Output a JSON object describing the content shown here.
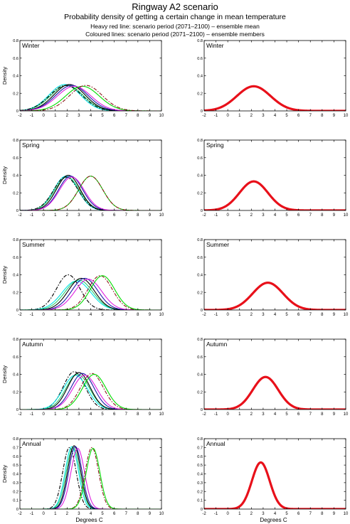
{
  "title": "Ringway A2 scenario",
  "subtitle": "Probability density of getting a certain change in mean temperature",
  "legend_heavy": "Heavy red line: scenario period (2071–2100) – ensemble mean",
  "legend_coloured": "Coloured lines: scenario period (2071–2100) – ensemble members",
  "colors": {
    "ensemble_mean": "#e8101a",
    "axis": "#000000"
  },
  "chart_data": [
    {
      "type": "line",
      "panel": "Winter",
      "column": "ensemble members",
      "title": "Winter",
      "xlabel": "",
      "ylabel": "Density",
      "xlim": [
        -2,
        10
      ],
      "ylim": [
        0,
        0.8
      ],
      "xticks": [
        "-2",
        "-1",
        "0",
        "1",
        "2",
        "3",
        "4",
        "5",
        "6",
        "7",
        "8",
        "9",
        "10"
      ],
      "yticks": [
        "0",
        "0.2",
        "0.4",
        "0.6",
        "0.8"
      ],
      "series": [
        {
          "color": "#00e5e5",
          "style": "solid",
          "peak_x": 1.8,
          "peak_y": 0.3
        },
        {
          "color": "#2ecc71",
          "style": "solid",
          "peak_x": 2.0,
          "peak_y": 0.29
        },
        {
          "color": "#000000",
          "style": "solid",
          "peak_x": 2.2,
          "peak_y": 0.3
        },
        {
          "color": "#000000",
          "style": "dashdot",
          "peak_x": 1.9,
          "peak_y": 0.29
        },
        {
          "color": "#1a1aaa",
          "style": "solid",
          "peak_x": 2.4,
          "peak_y": 0.29
        },
        {
          "color": "#e020e0",
          "style": "solid",
          "peak_x": 2.6,
          "peak_y": 0.28
        },
        {
          "color": "#00dd00",
          "style": "solid",
          "peak_x": 3.3,
          "peak_y": 0.28
        },
        {
          "color": "#8b1a1a",
          "style": "dashdot",
          "peak_x": 3.6,
          "peak_y": 0.29
        }
      ]
    },
    {
      "type": "line",
      "panel": "Winter",
      "column": "ensemble mean",
      "title": "Winter",
      "xlabel": "",
      "ylabel": "",
      "xlim": [
        -2,
        10
      ],
      "ylim": [
        0,
        0.8
      ],
      "xticks": [
        "-2",
        "-1",
        "0",
        "1",
        "2",
        "3",
        "4",
        "5",
        "6",
        "7",
        "8",
        "9",
        "10"
      ],
      "yticks": [
        "0",
        "0.2",
        "0.4",
        "0.6",
        "0.8"
      ],
      "series": [
        {
          "color": "#e8101a",
          "style": "heavy",
          "peak_x": 2.2,
          "peak_y": 0.28
        }
      ]
    },
    {
      "type": "line",
      "panel": "Spring",
      "column": "ensemble members",
      "title": "Spring",
      "xlabel": "",
      "ylabel": "Density",
      "xlim": [
        -2,
        10
      ],
      "ylim": [
        0,
        0.8
      ],
      "xticks": [
        "-2",
        "-1",
        "0",
        "1",
        "2",
        "3",
        "4",
        "5",
        "6",
        "7",
        "8",
        "9",
        "10"
      ],
      "yticks": [
        "0",
        "0.2",
        "0.4",
        "0.6",
        "0.8"
      ],
      "series": [
        {
          "color": "#00e5e5",
          "style": "solid",
          "peak_x": 1.9,
          "peak_y": 0.39
        },
        {
          "color": "#2ecc71",
          "style": "solid",
          "peak_x": 2.0,
          "peak_y": 0.38
        },
        {
          "color": "#000000",
          "style": "solid",
          "peak_x": 2.1,
          "peak_y": 0.4
        },
        {
          "color": "#000000",
          "style": "dashdot",
          "peak_x": 1.9,
          "peak_y": 0.38
        },
        {
          "color": "#1a1aaa",
          "style": "solid",
          "peak_x": 2.3,
          "peak_y": 0.39
        },
        {
          "color": "#e020e0",
          "style": "solid",
          "peak_x": 2.4,
          "peak_y": 0.38
        },
        {
          "color": "#00dd00",
          "style": "solid",
          "peak_x": 4.0,
          "peak_y": 0.39
        },
        {
          "color": "#8b1a1a",
          "style": "dashdot",
          "peak_x": 4.0,
          "peak_y": 0.39
        }
      ]
    },
    {
      "type": "line",
      "panel": "Spring",
      "column": "ensemble mean",
      "title": "Spring",
      "xlabel": "",
      "ylabel": "",
      "xlim": [
        -2,
        10
      ],
      "ylim": [
        0,
        0.8
      ],
      "xticks": [
        "-2",
        "-1",
        "0",
        "1",
        "2",
        "3",
        "4",
        "5",
        "6",
        "7",
        "8",
        "9",
        "10"
      ],
      "yticks": [
        "0",
        "0.2",
        "0.4",
        "0.6",
        "0.8"
      ],
      "series": [
        {
          "color": "#e8101a",
          "style": "heavy",
          "peak_x": 2.2,
          "peak_y": 0.33
        }
      ]
    },
    {
      "type": "line",
      "panel": "Summer",
      "column": "ensemble members",
      "title": "Summer",
      "xlabel": "",
      "ylabel": "Density",
      "xlim": [
        -2,
        10
      ],
      "ylim": [
        0,
        0.8
      ],
      "xticks": [
        "-2",
        "-1",
        "0",
        "1",
        "2",
        "3",
        "4",
        "5",
        "6",
        "7",
        "8",
        "9",
        "10"
      ],
      "yticks": [
        "0",
        "0.2",
        "0.4",
        "0.6",
        "0.8"
      ],
      "series": [
        {
          "color": "#000000",
          "style": "dashdot",
          "peak_x": 2.1,
          "peak_y": 0.4
        },
        {
          "color": "#00e5e5",
          "style": "solid",
          "peak_x": 2.8,
          "peak_y": 0.33
        },
        {
          "color": "#2ecc71",
          "style": "solid",
          "peak_x": 3.0,
          "peak_y": 0.34
        },
        {
          "color": "#000000",
          "style": "solid",
          "peak_x": 3.2,
          "peak_y": 0.36
        },
        {
          "color": "#1a1aaa",
          "style": "solid",
          "peak_x": 3.5,
          "peak_y": 0.36
        },
        {
          "color": "#e020e0",
          "style": "solid",
          "peak_x": 3.8,
          "peak_y": 0.35
        },
        {
          "color": "#8b1a1a",
          "style": "dashdot",
          "peak_x": 4.8,
          "peak_y": 0.39
        },
        {
          "color": "#00dd00",
          "style": "solid",
          "peak_x": 5.0,
          "peak_y": 0.39
        }
      ]
    },
    {
      "type": "line",
      "panel": "Summer",
      "column": "ensemble mean",
      "title": "Summer",
      "xlabel": "",
      "ylabel": "",
      "xlim": [
        -2,
        10
      ],
      "ylim": [
        0,
        0.8
      ],
      "xticks": [
        "-2",
        "-1",
        "0",
        "1",
        "2",
        "3",
        "4",
        "5",
        "6",
        "7",
        "8",
        "9",
        "10"
      ],
      "yticks": [
        "0",
        "0.2",
        "0.4",
        "0.6",
        "0.8"
      ],
      "series": [
        {
          "color": "#e8101a",
          "style": "heavy",
          "peak_x": 3.4,
          "peak_y": 0.31
        }
      ]
    },
    {
      "type": "line",
      "panel": "Autumn",
      "column": "ensemble members",
      "title": "Autumn",
      "xlabel": "",
      "ylabel": "Density",
      "xlim": [
        -2,
        10
      ],
      "ylim": [
        0,
        0.8
      ],
      "xticks": [
        "-2",
        "-1",
        "0",
        "1",
        "2",
        "3",
        "4",
        "5",
        "6",
        "7",
        "8",
        "9",
        "10"
      ],
      "yticks": [
        "0",
        "0.2",
        "0.4",
        "0.6",
        "0.8"
      ],
      "series": [
        {
          "color": "#000000",
          "style": "dashdot",
          "peak_x": 2.6,
          "peak_y": 0.43
        },
        {
          "color": "#00e5e5",
          "style": "solid",
          "peak_x": 2.7,
          "peak_y": 0.39
        },
        {
          "color": "#2ecc71",
          "style": "solid",
          "peak_x": 2.9,
          "peak_y": 0.4
        },
        {
          "color": "#000000",
          "style": "solid",
          "peak_x": 3.0,
          "peak_y": 0.42
        },
        {
          "color": "#1a1aaa",
          "style": "solid",
          "peak_x": 3.3,
          "peak_y": 0.41
        },
        {
          "color": "#e020e0",
          "style": "solid",
          "peak_x": 3.5,
          "peak_y": 0.39
        },
        {
          "color": "#8b1a1a",
          "style": "dashdot",
          "peak_x": 4.1,
          "peak_y": 0.41
        },
        {
          "color": "#00dd00",
          "style": "solid",
          "peak_x": 4.3,
          "peak_y": 0.4
        }
      ]
    },
    {
      "type": "line",
      "panel": "Autumn",
      "column": "ensemble mean",
      "title": "Autumn",
      "xlabel": "",
      "ylabel": "",
      "xlim": [
        -2,
        10
      ],
      "ylim": [
        0,
        0.8
      ],
      "xticks": [
        "-2",
        "-1",
        "0",
        "1",
        "2",
        "3",
        "4",
        "5",
        "6",
        "7",
        "8",
        "9",
        "10"
      ],
      "yticks": [
        "0",
        "0.2",
        "0.4",
        "0.6",
        "0.8"
      ],
      "series": [
        {
          "color": "#e8101a",
          "style": "heavy",
          "peak_x": 3.2,
          "peak_y": 0.37
        }
      ]
    },
    {
      "type": "line",
      "panel": "Annual",
      "column": "ensemble members",
      "title": "Annual",
      "xlabel": "Degrees C",
      "ylabel": "Density",
      "xlim": [
        -2,
        10
      ],
      "ylim": [
        0,
        0.8
      ],
      "xticks": [
        "-2",
        "-1",
        "0",
        "1",
        "2",
        "3",
        "4",
        "5",
        "6",
        "7",
        "8",
        "9",
        "10"
      ],
      "yticks": [
        "0",
        "0.1",
        "0.2",
        "0.3",
        "0.4",
        "0.5",
        "0.6",
        "0.7",
        "0.8"
      ],
      "series": [
        {
          "color": "#000000",
          "style": "dashdot",
          "peak_x": 2.2,
          "peak_y": 0.7
        },
        {
          "color": "#00e5e5",
          "style": "solid",
          "peak_x": 2.4,
          "peak_y": 0.71
        },
        {
          "color": "#2ecc71",
          "style": "solid",
          "peak_x": 2.5,
          "peak_y": 0.7
        },
        {
          "color": "#000000",
          "style": "solid",
          "peak_x": 2.6,
          "peak_y": 0.72
        },
        {
          "color": "#1a1aaa",
          "style": "solid",
          "peak_x": 2.7,
          "peak_y": 0.71
        },
        {
          "color": "#e020e0",
          "style": "solid",
          "peak_x": 2.9,
          "peak_y": 0.69
        },
        {
          "color": "#8b1a1a",
          "style": "dashdot",
          "peak_x": 4.1,
          "peak_y": 0.7
        },
        {
          "color": "#00dd00",
          "style": "solid",
          "peak_x": 4.2,
          "peak_y": 0.69
        }
      ]
    },
    {
      "type": "line",
      "panel": "Annual",
      "column": "ensemble mean",
      "title": "Annual",
      "xlabel": "Degrees C",
      "ylabel": "",
      "xlim": [
        -2,
        10
      ],
      "ylim": [
        0,
        0.8
      ],
      "xticks": [
        "-2",
        "-1",
        "0",
        "1",
        "2",
        "3",
        "4",
        "5",
        "6",
        "7",
        "8",
        "9",
        "10"
      ],
      "yticks": [
        "0",
        "0.1",
        "0.2",
        "0.3",
        "0.4",
        "0.5",
        "0.6",
        "0.7",
        "0.8"
      ],
      "series": [
        {
          "color": "#e8101a",
          "style": "heavy",
          "peak_x": 2.8,
          "peak_y": 0.53
        }
      ]
    }
  ]
}
